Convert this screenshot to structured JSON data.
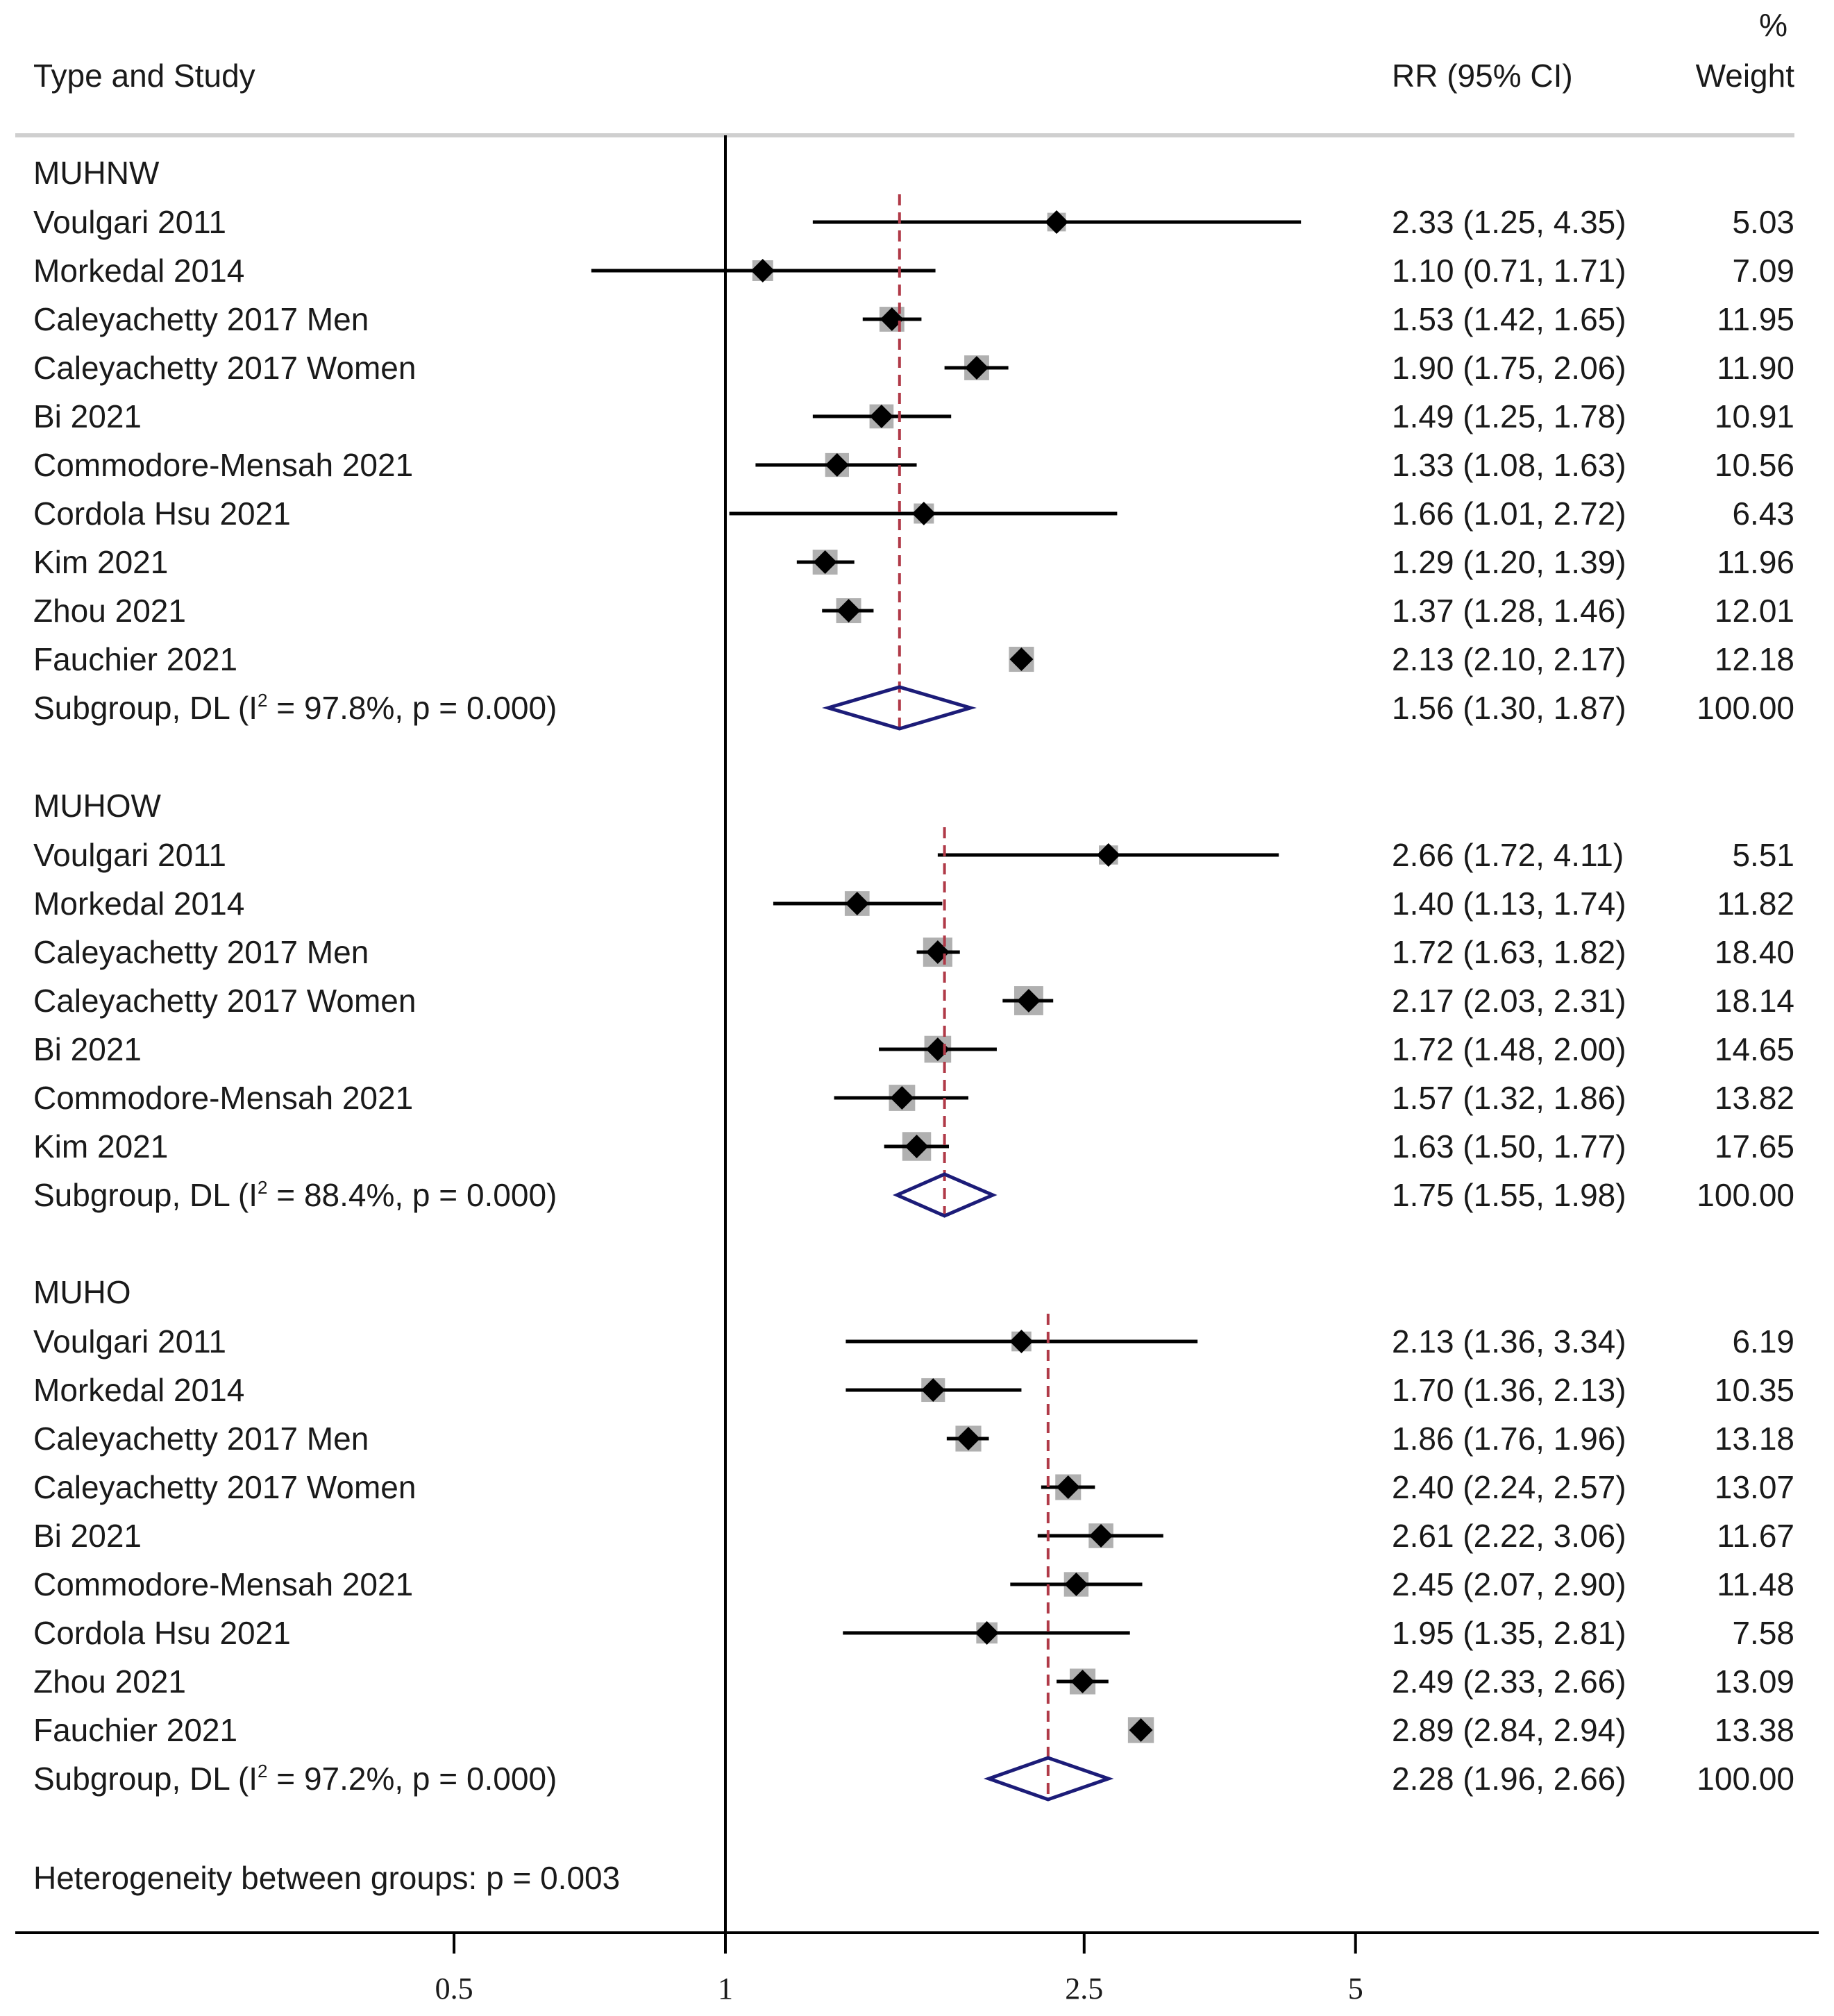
{
  "header": {
    "col_study": "Type and Study",
    "col_rr": "RR (95% CI)",
    "col_weight_pct": "%",
    "col_weight": "Weight"
  },
  "chart_data": {
    "type": "forest",
    "x_scale": "log",
    "x_ticks": [
      0.5,
      1,
      2.5,
      5
    ],
    "x_tick_labels": [
      "0.5",
      "1",
      "2.5",
      "5"
    ],
    "null_line": 1,
    "footer": "Heterogeneity between groups: p = 0.003",
    "groups": [
      {
        "name": "MUHNW",
        "studies": [
          {
            "label": "Voulgari 2011",
            "rr": 2.33,
            "lo": 1.25,
            "hi": 4.35,
            "text": "2.33 (1.25, 4.35)",
            "weight": "5.03"
          },
          {
            "label": "Morkedal 2014",
            "rr": 1.1,
            "lo": 0.71,
            "hi": 1.71,
            "text": "1.10 (0.71, 1.71)",
            "weight": "7.09"
          },
          {
            "label": "Caleyachetty 2017 Men",
            "rr": 1.53,
            "lo": 1.42,
            "hi": 1.65,
            "text": "1.53 (1.42, 1.65)",
            "weight": "11.95"
          },
          {
            "label": "Caleyachetty 2017 Women",
            "rr": 1.9,
            "lo": 1.75,
            "hi": 2.06,
            "text": "1.90 (1.75, 2.06)",
            "weight": "11.90"
          },
          {
            "label": "Bi 2021",
            "rr": 1.49,
            "lo": 1.25,
            "hi": 1.78,
            "text": "1.49 (1.25, 1.78)",
            "weight": "10.91"
          },
          {
            "label": "Commodore-Mensah 2021",
            "rr": 1.33,
            "lo": 1.08,
            "hi": 1.63,
            "text": "1.33 (1.08, 1.63)",
            "weight": "10.56"
          },
          {
            "label": "Cordola Hsu 2021",
            "rr": 1.66,
            "lo": 1.01,
            "hi": 2.72,
            "text": "1.66 (1.01, 2.72)",
            "weight": "6.43"
          },
          {
            "label": "Kim 2021",
            "rr": 1.29,
            "lo": 1.2,
            "hi": 1.39,
            "text": "1.29 (1.20, 1.39)",
            "weight": "11.96"
          },
          {
            "label": "Zhou 2021",
            "rr": 1.37,
            "lo": 1.28,
            "hi": 1.46,
            "text": "1.37 (1.28, 1.46)",
            "weight": "12.01"
          },
          {
            "label": "Fauchier  2021",
            "rr": 2.13,
            "lo": 2.1,
            "hi": 2.17,
            "text": "2.13 (2.10, 2.17)",
            "weight": "12.18"
          }
        ],
        "subgroup": {
          "label_pre": "Subgroup, DL (I",
          "label_sup": "2",
          "label_post": " = 97.8%, p = 0.000)",
          "rr": 1.56,
          "lo": 1.3,
          "hi": 1.87,
          "text": "1.56 (1.30, 1.87)",
          "weight": "100.00"
        }
      },
      {
        "name": "MUHOW",
        "studies": [
          {
            "label": "Voulgari 2011",
            "rr": 2.66,
            "lo": 1.72,
            "hi": 4.11,
            "text": "2.66 (1.72, 4.11)",
            "weight": "5.51"
          },
          {
            "label": "Morkedal 2014",
            "rr": 1.4,
            "lo": 1.13,
            "hi": 1.74,
            "text": "1.40 (1.13, 1.74)",
            "weight": "11.82"
          },
          {
            "label": "Caleyachetty 2017 Men",
            "rr": 1.72,
            "lo": 1.63,
            "hi": 1.82,
            "text": "1.72 (1.63, 1.82)",
            "weight": "18.40"
          },
          {
            "label": "Caleyachetty 2017 Women",
            "rr": 2.17,
            "lo": 2.03,
            "hi": 2.31,
            "text": "2.17 (2.03, 2.31)",
            "weight": "18.14"
          },
          {
            "label": "Bi 2021",
            "rr": 1.72,
            "lo": 1.48,
            "hi": 2.0,
            "text": "1.72 (1.48, 2.00)",
            "weight": "14.65"
          },
          {
            "label": "Commodore-Mensah 2021",
            "rr": 1.57,
            "lo": 1.32,
            "hi": 1.86,
            "text": "1.57 (1.32, 1.86)",
            "weight": "13.82"
          },
          {
            "label": "Kim 2021",
            "rr": 1.63,
            "lo": 1.5,
            "hi": 1.77,
            "text": "1.63 (1.50, 1.77)",
            "weight": "17.65"
          }
        ],
        "subgroup": {
          "label_pre": "Subgroup, DL (I",
          "label_sup": "2",
          "label_post": " = 88.4%, p = 0.000)",
          "rr": 1.75,
          "lo": 1.55,
          "hi": 1.98,
          "text": "1.75 (1.55, 1.98)",
          "weight": "100.00"
        }
      },
      {
        "name": "MUHO",
        "studies": [
          {
            "label": "Voulgari 2011",
            "rr": 2.13,
            "lo": 1.36,
            "hi": 3.34,
            "text": "2.13 (1.36, 3.34)",
            "weight": "6.19"
          },
          {
            "label": "Morkedal 2014",
            "rr": 1.7,
            "lo": 1.36,
            "hi": 2.13,
            "text": "1.70 (1.36, 2.13)",
            "weight": "10.35"
          },
          {
            "label": "Caleyachetty 2017 Men",
            "rr": 1.86,
            "lo": 1.76,
            "hi": 1.96,
            "text": "1.86 (1.76, 1.96)",
            "weight": "13.18"
          },
          {
            "label": "Caleyachetty 2017 Women",
            "rr": 2.4,
            "lo": 2.24,
            "hi": 2.57,
            "text": "2.40 (2.24, 2.57)",
            "weight": "13.07"
          },
          {
            "label": "Bi 2021",
            "rr": 2.61,
            "lo": 2.22,
            "hi": 3.06,
            "text": "2.61 (2.22, 3.06)",
            "weight": "11.67"
          },
          {
            "label": "Commodore-Mensah 2021",
            "rr": 2.45,
            "lo": 2.07,
            "hi": 2.9,
            "text": "2.45 (2.07, 2.90)",
            "weight": "11.48"
          },
          {
            "label": "Cordola Hsu 2021",
            "rr": 1.95,
            "lo": 1.35,
            "hi": 2.81,
            "text": "1.95 (1.35, 2.81)",
            "weight": "7.58"
          },
          {
            "label": "Zhou 2021",
            "rr": 2.49,
            "lo": 2.33,
            "hi": 2.66,
            "text": "2.49 (2.33, 2.66)",
            "weight": "13.09"
          },
          {
            "label": "Fauchier  2021",
            "rr": 2.89,
            "lo": 2.84,
            "hi": 2.94,
            "text": "2.89 (2.84, 2.94)",
            "weight": "13.38"
          }
        ],
        "subgroup": {
          "label_pre": "Subgroup, DL (I",
          "label_sup": "2",
          "label_post": " = 97.2%, p = 0.000)",
          "rr": 2.28,
          "lo": 1.96,
          "hi": 2.66,
          "text": "2.28 (1.96, 2.66)",
          "weight": "100.00"
        }
      }
    ]
  },
  "colors": {
    "ink": "#000000",
    "weight_box": "#b0b0b0",
    "diamond": "#1c1c78",
    "pooled_line": "#b03a48",
    "separator": "#cfcfcf"
  }
}
